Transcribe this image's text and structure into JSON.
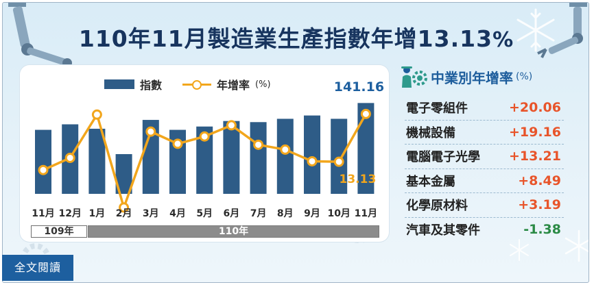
{
  "title": {
    "text": "110年11月製造業生產指數年增13.13",
    "unit": "%"
  },
  "legend": {
    "bar_label": "指數",
    "line_label": "年增率",
    "line_unit": "(%)"
  },
  "colors": {
    "bar": "#2e5c87",
    "line": "#f2a61c",
    "title": "#17345e",
    "positive": "#e8542a",
    "negative": "#2a8a45",
    "accent": "#1d5f9f"
  },
  "chart_data": {
    "type": "bar",
    "categories": [
      "11月",
      "12月",
      "1月",
      "2月",
      "3月",
      "4月",
      "5月",
      "6月",
      "7月",
      "8月",
      "9月",
      "10月",
      "11月"
    ],
    "series": [
      {
        "name": "指數",
        "type": "bar",
        "values": [
          129.0,
          131.5,
          129.5,
          118.0,
          133.5,
          129.0,
          130.5,
          133.0,
          132.5,
          134.0,
          135.5,
          134.0,
          141.16
        ]
      },
      {
        "name": "年增率",
        "type": "line",
        "values": [
          1.6,
          4.1,
          13.0,
          -6.1,
          9.5,
          7.0,
          8.5,
          10.8,
          6.8,
          5.8,
          3.4,
          3.3,
          13.13
        ]
      }
    ],
    "labels": {
      "last_bar": "141.16",
      "last_point": "13.13"
    },
    "years": [
      {
        "label": "109年",
        "span": 2
      },
      {
        "label": "110年",
        "span": 11
      }
    ]
  },
  "industry": {
    "title": "中業別年增率",
    "unit": "(%)",
    "items": [
      {
        "name": "電子零組件",
        "value": "+20.06",
        "sign": "positive"
      },
      {
        "name": "機械設備",
        "value": "+19.16",
        "sign": "positive"
      },
      {
        "name": "電腦電子光學",
        "value": "+13.21",
        "sign": "positive"
      },
      {
        "name": "基本金屬",
        "value": "+8.49",
        "sign": "positive"
      },
      {
        "name": "化學原材料",
        "value": "+3.19",
        "sign": "positive"
      },
      {
        "name": "汽車及其零件",
        "value": "-1.38",
        "sign": "negative"
      }
    ]
  },
  "footer": {
    "full_text_label": "全文閱讀"
  }
}
